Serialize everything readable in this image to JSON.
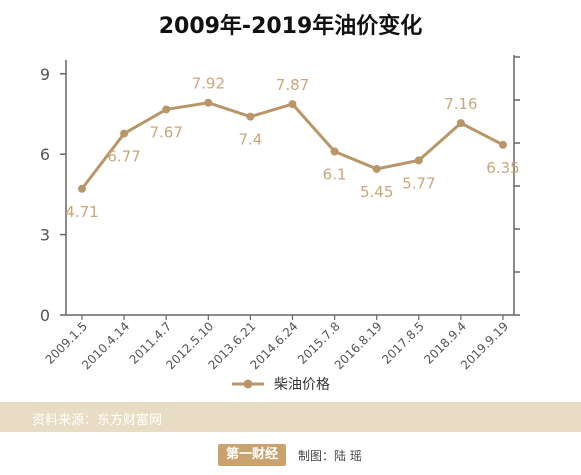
{
  "title": "2009年-2019年油价变化",
  "source": "资料来源：东方财富网",
  "brand_logo": "第一财经",
  "credit": "制图：陆 瑶",
  "colors": {
    "line": "#b99668",
    "label": "#c9a77a",
    "axis": "#666666",
    "grid": "#d9d9d9",
    "source_bar": "#e9dcc4",
    "brand": "#c9a26d"
  },
  "chart_data": {
    "type": "line",
    "title": "2009年-2019年油价变化",
    "categories": [
      "2009.1.5",
      "2010.4.14",
      "2011.4.7",
      "2012.5.10",
      "2013.6.21",
      "2014.6.24",
      "2015.7.8",
      "2016.8.19",
      "2017.8.5",
      "2018.9.4",
      "2019.9.19"
    ],
    "series": [
      {
        "name": "柴油价格",
        "values": [
          4.71,
          6.77,
          7.67,
          7.92,
          7.4,
          7.87,
          6.1,
          5.45,
          5.77,
          7.16,
          6.35
        ]
      }
    ],
    "yticks": [
      0,
      3,
      6,
      9
    ],
    "ylim": [
      0,
      10
    ],
    "grid": false,
    "legend": "bottom"
  }
}
